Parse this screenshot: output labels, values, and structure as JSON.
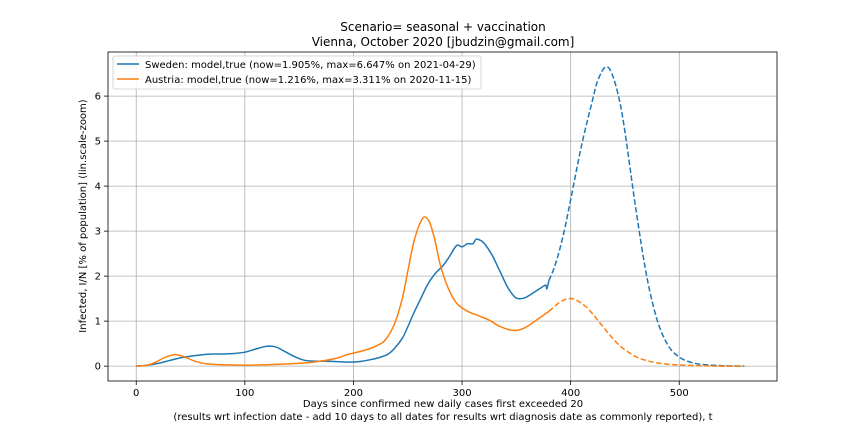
{
  "chart_data": {
    "type": "line",
    "title": "Scenario= seasonal + vaccination",
    "subtitle": "Vienna, October 2020 [jbudzin@gmail.com]",
    "xlabel": "Days since confirmed new daily cases first exceeded 20",
    "xlabel2": "(results wrt infection date - add 10 days to all dates for results wrt diagnosis date as commonly reported), t",
    "ylabel": "Infected, I/N [% of population] (lin.scale-zoom)",
    "xlim": [
      -26,
      590
    ],
    "ylim": [
      -0.33,
      6.98
    ],
    "xticks": [
      0,
      100,
      200,
      300,
      400,
      500
    ],
    "yticks": [
      0,
      1,
      2,
      3,
      4,
      5,
      6
    ],
    "grid": true,
    "legend_position": "top-left",
    "series": [
      {
        "name": "Sweden: model,true (now=1.905%, max=6.647% on 2021-04-29)",
        "color": "#1f77b4",
        "true": [
          [
            0,
            0
          ],
          [
            10,
            0.02
          ],
          [
            20,
            0.06
          ],
          [
            30,
            0.12
          ],
          [
            40,
            0.18
          ],
          [
            50,
            0.22
          ],
          [
            60,
            0.25
          ],
          [
            70,
            0.27
          ],
          [
            80,
            0.27
          ],
          [
            90,
            0.28
          ],
          [
            100,
            0.31
          ],
          [
            110,
            0.38
          ],
          [
            120,
            0.44
          ],
          [
            128,
            0.43
          ],
          [
            135,
            0.35
          ],
          [
            145,
            0.22
          ],
          [
            155,
            0.13
          ],
          [
            165,
            0.11
          ],
          [
            175,
            0.11
          ],
          [
            185,
            0.1
          ],
          [
            195,
            0.09
          ],
          [
            205,
            0.1
          ],
          [
            215,
            0.14
          ],
          [
            225,
            0.2
          ],
          [
            232,
            0.27
          ],
          [
            238,
            0.4
          ],
          [
            245,
            0.62
          ],
          [
            250,
            0.87
          ],
          [
            255,
            1.15
          ],
          [
            262,
            1.5
          ],
          [
            268,
            1.8
          ],
          [
            275,
            2.05
          ],
          [
            282,
            2.22
          ],
          [
            288,
            2.42
          ],
          [
            295,
            2.68
          ],
          [
            300,
            2.65
          ],
          [
            305,
            2.72
          ],
          [
            310,
            2.72
          ],
          [
            313,
            2.82
          ],
          [
            318,
            2.78
          ],
          [
            322,
            2.68
          ],
          [
            328,
            2.45
          ],
          [
            335,
            2.1
          ],
          [
            342,
            1.75
          ],
          [
            348,
            1.55
          ],
          [
            352,
            1.5
          ],
          [
            358,
            1.52
          ],
          [
            365,
            1.62
          ],
          [
            372,
            1.73
          ],
          [
            377,
            1.8
          ],
          [
            378,
            1.72
          ],
          [
            380,
            1.9
          ]
        ],
        "model": [
          [
            380,
            1.9
          ],
          [
            385,
            2.2
          ],
          [
            390,
            2.6
          ],
          [
            395,
            3.1
          ],
          [
            400,
            3.7
          ],
          [
            410,
            4.9
          ],
          [
            420,
            5.9
          ],
          [
            425,
            6.35
          ],
          [
            432,
            6.647
          ],
          [
            438,
            6.5
          ],
          [
            445,
            5.9
          ],
          [
            450,
            5.2
          ],
          [
            460,
            3.5
          ],
          [
            470,
            2.0
          ],
          [
            480,
            1.0
          ],
          [
            490,
            0.45
          ],
          [
            500,
            0.2
          ],
          [
            510,
            0.09
          ],
          [
            520,
            0.04
          ],
          [
            540,
            0.01
          ],
          [
            560,
            0.0
          ]
        ]
      },
      {
        "name": "Austria: model,true (now=1.216%, max=3.311% on 2020-11-15)",
        "color": "#ff7f0e",
        "true": [
          [
            0,
            0
          ],
          [
            10,
            0.02
          ],
          [
            18,
            0.09
          ],
          [
            25,
            0.18
          ],
          [
            32,
            0.24
          ],
          [
            38,
            0.25
          ],
          [
            45,
            0.2
          ],
          [
            55,
            0.1
          ],
          [
            65,
            0.05
          ],
          [
            80,
            0.03
          ],
          [
            100,
            0.02
          ],
          [
            120,
            0.03
          ],
          [
            140,
            0.05
          ],
          [
            160,
            0.08
          ],
          [
            175,
            0.13
          ],
          [
            185,
            0.18
          ],
          [
            195,
            0.26
          ],
          [
            210,
            0.35
          ],
          [
            222,
            0.46
          ],
          [
            230,
            0.6
          ],
          [
            238,
            0.95
          ],
          [
            245,
            1.5
          ],
          [
            250,
            2.1
          ],
          [
            255,
            2.7
          ],
          [
            260,
            3.1
          ],
          [
            265,
            3.311
          ],
          [
            270,
            3.2
          ],
          [
            275,
            2.8
          ],
          [
            280,
            2.25
          ],
          [
            287,
            1.75
          ],
          [
            295,
            1.4
          ],
          [
            305,
            1.22
          ],
          [
            315,
            1.12
          ],
          [
            325,
            1.02
          ],
          [
            335,
            0.88
          ],
          [
            345,
            0.8
          ],
          [
            352,
            0.8
          ],
          [
            360,
            0.88
          ],
          [
            370,
            1.05
          ],
          [
            380,
            1.216
          ]
        ],
        "model": [
          [
            380,
            1.216
          ],
          [
            390,
            1.42
          ],
          [
            398,
            1.5
          ],
          [
            405,
            1.47
          ],
          [
            415,
            1.3
          ],
          [
            425,
            1.02
          ],
          [
            435,
            0.72
          ],
          [
            445,
            0.46
          ],
          [
            455,
            0.28
          ],
          [
            465,
            0.16
          ],
          [
            480,
            0.07
          ],
          [
            500,
            0.025
          ],
          [
            520,
            0.01
          ],
          [
            540,
            0.0
          ],
          [
            560,
            0.0
          ]
        ]
      }
    ]
  }
}
